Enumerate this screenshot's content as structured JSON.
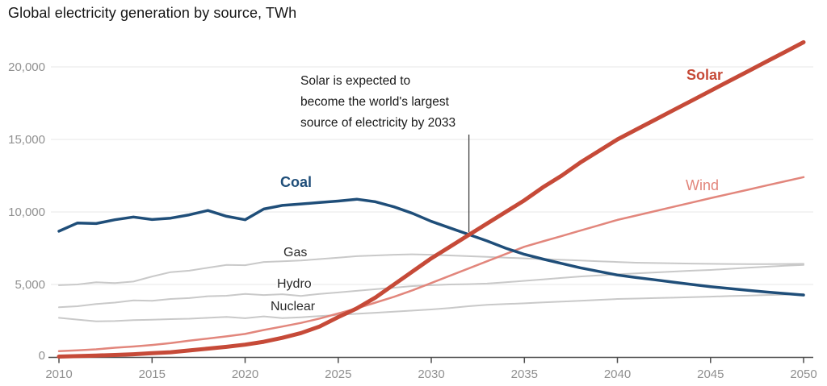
{
  "header": {
    "title": "Global electricity generation by source, TWh"
  },
  "chart_data": {
    "type": "line",
    "title": "Global electricity generation by source, TWh",
    "xlabel": "",
    "ylabel": "TWh",
    "xlim": [
      2010,
      2050
    ],
    "ylim": [
      0,
      20000
    ],
    "grid": true,
    "legend_position": "inline-labels",
    "x_ticks": [
      2010,
      2015,
      2020,
      2025,
      2030,
      2035,
      2040,
      2045,
      2050
    ],
    "y_ticks": [
      0,
      5000,
      10000,
      15000,
      20000
    ],
    "y_tick_labels": [
      "0",
      "5,000",
      "10,000",
      "15,000",
      "20,000"
    ],
    "x": [
      2010,
      2011,
      2012,
      2013,
      2014,
      2015,
      2016,
      2017,
      2018,
      2019,
      2020,
      2021,
      2022,
      2023,
      2024,
      2025,
      2026,
      2027,
      2028,
      2029,
      2030,
      2031,
      2032,
      2033,
      2034,
      2035,
      2036,
      2037,
      2038,
      2039,
      2040,
      2041,
      2042,
      2043,
      2044,
      2045,
      2046,
      2047,
      2048,
      2049,
      2050
    ],
    "series": [
      {
        "name": "Gas",
        "color": "#c9c9c9",
        "label_color": "#2b2b2b",
        "width": 2,
        "values": [
          4950,
          5000,
          5150,
          5100,
          5200,
          5550,
          5850,
          5950,
          6150,
          6350,
          6330,
          6550,
          6600,
          6650,
          6750,
          6850,
          6950,
          7000,
          7050,
          7080,
          7050,
          7000,
          6950,
          6900,
          6850,
          6800,
          6750,
          6700,
          6650,
          6600,
          6550,
          6500,
          6480,
          6460,
          6440,
          6420,
          6410,
          6400,
          6400,
          6410,
          6420
        ]
      },
      {
        "name": "Hydro",
        "color": "#c9c9c9",
        "label_color": "#2b2b2b",
        "width": 2,
        "values": [
          3430,
          3500,
          3650,
          3750,
          3900,
          3880,
          4000,
          4060,
          4190,
          4220,
          4350,
          4270,
          4330,
          4210,
          4350,
          4450,
          4560,
          4670,
          4780,
          4890,
          4950,
          5000,
          5020,
          5060,
          5150,
          5250,
          5350,
          5450,
          5550,
          5620,
          5700,
          5760,
          5830,
          5890,
          5950,
          6000,
          6080,
          6150,
          6220,
          6290,
          6350
        ]
      },
      {
        "name": "Nuclear",
        "color": "#c9c9c9",
        "label_color": "#2b2b2b",
        "width": 2,
        "values": [
          2700,
          2580,
          2460,
          2480,
          2540,
          2570,
          2610,
          2640,
          2700,
          2760,
          2670,
          2800,
          2680,
          2740,
          2820,
          2900,
          2980,
          3050,
          3120,
          3200,
          3280,
          3380,
          3500,
          3600,
          3650,
          3700,
          3760,
          3820,
          3880,
          3940,
          4000,
          4030,
          4060,
          4090,
          4130,
          4160,
          4200,
          4230,
          4270,
          4300,
          4340
        ]
      },
      {
        "name": "Wind",
        "color": "#e2867c",
        "label_color": "#e2867c",
        "width": 2.5,
        "values": [
          400,
          460,
          530,
          640,
          720,
          830,
          960,
          1130,
          1270,
          1420,
          1590,
          1860,
          2100,
          2350,
          2650,
          3000,
          3350,
          3750,
          4150,
          4600,
          5100,
          5600,
          6100,
          6600,
          7100,
          7600,
          7970,
          8340,
          8710,
          9080,
          9450,
          9750,
          10050,
          10350,
          10650,
          10950,
          11240,
          11530,
          11820,
          12110,
          12400
        ]
      },
      {
        "name": "Coal",
        "color": "#1f4e79",
        "label_color": "#1f4e79",
        "width": 3.5,
        "values": [
          8670,
          9240,
          9200,
          9460,
          9650,
          9480,
          9570,
          9800,
          10100,
          9700,
          9460,
          10200,
          10450,
          10550,
          10650,
          10750,
          10880,
          10700,
          10350,
          9900,
          9350,
          8900,
          8450,
          8000,
          7500,
          7080,
          6750,
          6450,
          6150,
          5900,
          5650,
          5480,
          5320,
          5160,
          5000,
          4850,
          4720,
          4600,
          4480,
          4370,
          4270
        ]
      },
      {
        "name": "Solar",
        "color": "#c64a38",
        "label_color": "#c64a38",
        "width": 5,
        "values": [
          30,
          60,
          100,
          140,
          190,
          260,
          330,
          450,
          580,
          700,
          850,
          1050,
          1320,
          1650,
          2100,
          2750,
          3350,
          4100,
          5000,
          5900,
          6800,
          7600,
          8400,
          9200,
          10000,
          10800,
          11700,
          12500,
          13400,
          14200,
          15000,
          15670,
          16340,
          17010,
          17680,
          18350,
          19020,
          19690,
          20360,
          21030,
          21700
        ]
      }
    ],
    "annotation": {
      "lines": [
        "Solar is expected to",
        "become the world's largest",
        "source of electricity by 2033"
      ],
      "pointer_year": 2032,
      "pointer_value": 8600
    }
  }
}
